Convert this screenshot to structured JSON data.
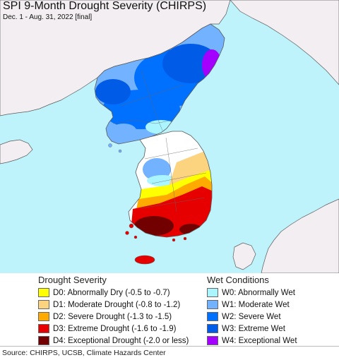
{
  "title": "SPI 9-Month Drought Severity (CHIRPS)",
  "subtitle": "Dec. 1 - Aug. 31, 2022 [final]",
  "colors": {
    "ocean": "#bff3fb",
    "land_outside": "#f2eef1",
    "border": "#5a5a5a",
    "D0": "#ffff00",
    "D1": "#fcd37f",
    "D2": "#ffaa00",
    "D3": "#e60000",
    "D4": "#730000",
    "W0": "#aaf5ff",
    "W1": "#73b2ff",
    "W2": "#0070ff",
    "W3": "#005ce6",
    "W4": "#a400ff"
  },
  "legend": {
    "drought": {
      "heading": "Drought Severity",
      "items": [
        {
          "code": "D0",
          "label": "D0: Abnormally Dry (-0.5 to -0.7)",
          "color": "#ffff00"
        },
        {
          "code": "D1",
          "label": "D1: Moderate Drought (-0.8 to -1.2)",
          "color": "#fcd37f"
        },
        {
          "code": "D2",
          "label": "D2: Severe Drought (-1.3 to -1.5)",
          "color": "#ffaa00"
        },
        {
          "code": "D3",
          "label": "D3: Extreme Drought (-1.6 to -1.9)",
          "color": "#e60000"
        },
        {
          "code": "D4",
          "label": "D4: Exceptional Drought (-2.0 or less)",
          "color": "#730000"
        }
      ]
    },
    "wet": {
      "heading": "Wet Conditions",
      "items": [
        {
          "code": "W0",
          "label": "W0: Abnormally Wet",
          "color": "#aaf5ff"
        },
        {
          "code": "W1",
          "label": "W1: Moderate Wet",
          "color": "#73b2ff"
        },
        {
          "code": "W2",
          "label": "W2: Severe Wet",
          "color": "#0070ff"
        },
        {
          "code": "W3",
          "label": "W3: Extreme Wet",
          "color": "#005ce6"
        },
        {
          "code": "W4",
          "label": "W4: Exceptional Wet",
          "color": "#a400ff"
        }
      ]
    }
  },
  "source": "Source: CHIRPS, UCSB, Climate Hazards Center"
}
